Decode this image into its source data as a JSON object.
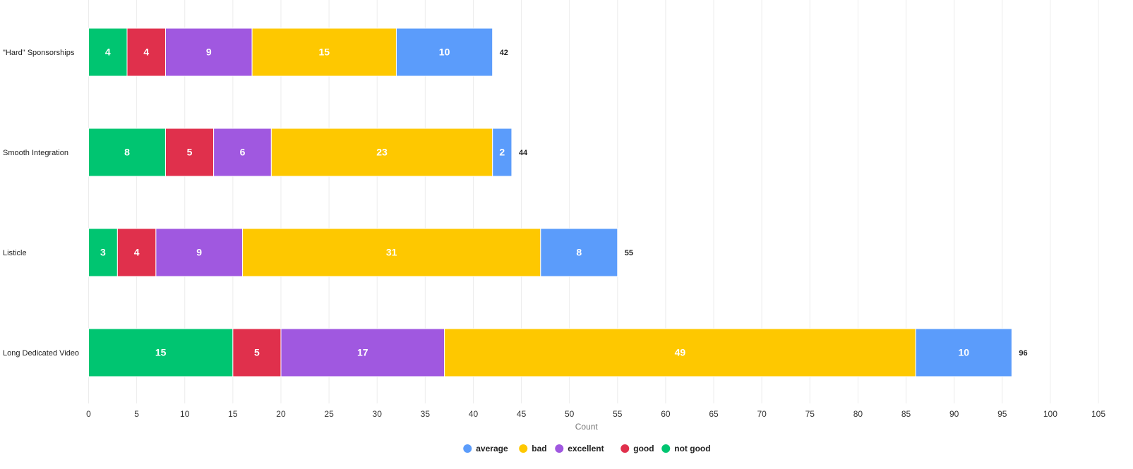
{
  "chart_data": {
    "type": "bar",
    "orientation": "horizontal",
    "stacked": true,
    "title": "",
    "xlabel": "Count",
    "ylabel": "",
    "xlim": [
      0,
      105
    ],
    "xticks": [
      0,
      5,
      10,
      15,
      20,
      25,
      30,
      35,
      40,
      45,
      50,
      55,
      60,
      65,
      70,
      75,
      80,
      85,
      90,
      95,
      100,
      105
    ],
    "grid": true,
    "legend_position": "bottom",
    "categories": [
      "\"Hard\" Sponsorships",
      "Smooth Integration",
      "Listicle",
      "Long Dedicated Video"
    ],
    "stack_order": [
      "not good",
      "good",
      "excellent",
      "bad",
      "average"
    ],
    "series": [
      {
        "name": "average",
        "color": "#5b9cfb",
        "values": [
          10,
          2,
          8,
          10
        ]
      },
      {
        "name": "bad",
        "color": "#fec800",
        "values": [
          15,
          23,
          31,
          49
        ]
      },
      {
        "name": "excellent",
        "color": "#a058e0",
        "values": [
          9,
          6,
          9,
          17
        ]
      },
      {
        "name": "good",
        "color": "#e0304c",
        "values": [
          4,
          5,
          4,
          5
        ]
      },
      {
        "name": "not good",
        "color": "#00c571",
        "values": [
          4,
          8,
          3,
          15
        ]
      }
    ],
    "totals": [
      42,
      44,
      55,
      96
    ]
  }
}
